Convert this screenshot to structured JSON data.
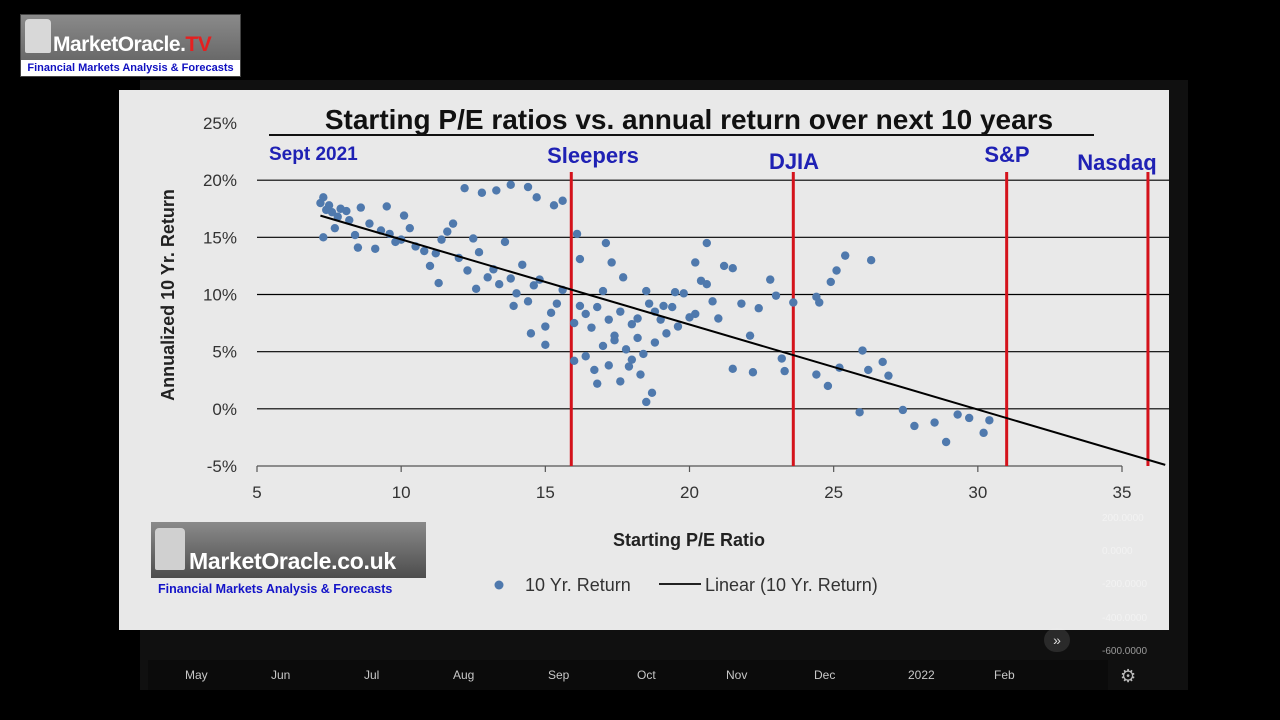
{
  "background": {
    "months": [
      "May",
      "Jun",
      "Jul",
      "Aug",
      "Sep",
      "Oct",
      "Nov",
      "Dec",
      "2022",
      "Feb"
    ],
    "right_scale": [
      "200.0000",
      "0.0000",
      "-200.0000",
      "-400.0000",
      "-600.0000"
    ]
  },
  "logo_top": {
    "brand": "MarketOracle.",
    "brand_suffix": "TV",
    "tagline": "Financial Markets Analysis & Forecasts"
  },
  "logo_bottom": {
    "brand": "MarketOracle.co.uk",
    "tagline": "Financial Markets Analysis & Forecasts"
  },
  "colors": {
    "point": "#4f79ad",
    "marker_line": "#d4121b",
    "marker_text": "#1f21b4",
    "trend": "#000000"
  },
  "chart_data": {
    "type": "scatter",
    "title": "Starting P/E ratios vs. annual return over next 10 years",
    "xlabel": "Starting P/E Ratio",
    "ylabel": "Annualized 10 Yr. Return",
    "xlim": [
      5,
      35
    ],
    "ylim": [
      -5,
      25
    ],
    "xticks": [
      "5",
      "10",
      "15",
      "20",
      "25",
      "30",
      "35"
    ],
    "yticks": [
      "25%",
      "20%",
      "15%",
      "10%",
      "5%",
      "0%",
      "-5%"
    ],
    "y_tick_values": [
      25,
      20,
      15,
      10,
      5,
      0,
      -5
    ],
    "x_tick_values": [
      5,
      10,
      15,
      20,
      25,
      30,
      35
    ],
    "grid": true,
    "legend_position": "bottom",
    "legend": {
      "points": "10 Yr. Return",
      "trend": "Linear (10 Yr. Return)"
    },
    "annotation": "Sept 2021",
    "markers": [
      {
        "label": "Sleepers",
        "x": 15.9
      },
      {
        "label": "DJIA",
        "x": 23.6
      },
      {
        "label": "S&P",
        "x": 31.0
      },
      {
        "label": "Nasdaq",
        "x": 35.9
      }
    ],
    "trendline": {
      "x": [
        7.2,
        36.5
      ],
      "y": [
        16.9,
        -4.9
      ]
    },
    "series": [
      {
        "name": "10 Yr. Return",
        "points": [
          [
            7.2,
            18.0
          ],
          [
            7.3,
            18.5
          ],
          [
            7.4,
            17.4
          ],
          [
            7.5,
            17.8
          ],
          [
            7.6,
            17.2
          ],
          [
            7.8,
            16.8
          ],
          [
            7.9,
            17.5
          ],
          [
            8.1,
            17.3
          ],
          [
            7.3,
            15.0
          ],
          [
            7.7,
            15.8
          ],
          [
            8.2,
            16.5
          ],
          [
            8.4,
            15.2
          ],
          [
            8.5,
            14.1
          ],
          [
            8.6,
            17.6
          ],
          [
            8.9,
            16.2
          ],
          [
            9.1,
            14.0
          ],
          [
            9.3,
            15.6
          ],
          [
            9.5,
            17.7
          ],
          [
            9.6,
            15.3
          ],
          [
            9.8,
            14.6
          ],
          [
            10.1,
            16.9
          ],
          [
            10.3,
            15.8
          ],
          [
            10.5,
            14.2
          ],
          [
            10.8,
            13.8
          ],
          [
            11.0,
            12.5
          ],
          [
            11.2,
            13.6
          ],
          [
            11.4,
            14.8
          ],
          [
            11.6,
            15.5
          ],
          [
            11.8,
            16.2
          ],
          [
            12.0,
            13.2
          ],
          [
            12.3,
            12.1
          ],
          [
            12.5,
            14.9
          ],
          [
            12.7,
            13.7
          ],
          [
            13.0,
            11.5
          ],
          [
            13.2,
            12.2
          ],
          [
            13.4,
            10.9
          ],
          [
            13.6,
            14.6
          ],
          [
            13.8,
            11.4
          ],
          [
            14.0,
            10.1
          ],
          [
            14.2,
            12.6
          ],
          [
            14.4,
            9.4
          ],
          [
            14.6,
            10.8
          ],
          [
            14.8,
            11.3
          ],
          [
            15.0,
            7.2
          ],
          [
            15.2,
            8.4
          ],
          [
            15.4,
            9.2
          ],
          [
            15.6,
            10.4
          ],
          [
            12.2,
            19.3
          ],
          [
            12.8,
            18.9
          ],
          [
            13.3,
            19.1
          ],
          [
            13.8,
            19.6
          ],
          [
            14.4,
            19.4
          ],
          [
            14.7,
            18.5
          ],
          [
            15.3,
            17.8
          ],
          [
            15.6,
            18.2
          ],
          [
            10.0,
            14.8
          ],
          [
            11.3,
            11.0
          ],
          [
            12.6,
            10.5
          ],
          [
            13.9,
            9.0
          ],
          [
            14.5,
            6.6
          ],
          [
            15.0,
            5.6
          ],
          [
            16.0,
            7.5
          ],
          [
            16.2,
            9.0
          ],
          [
            16.4,
            8.3
          ],
          [
            16.6,
            7.1
          ],
          [
            16.8,
            8.9
          ],
          [
            17.0,
            10.3
          ],
          [
            17.2,
            7.8
          ],
          [
            17.4,
            6.4
          ],
          [
            17.6,
            8.5
          ],
          [
            17.8,
            5.2
          ],
          [
            18.0,
            7.4
          ],
          [
            18.2,
            6.2
          ],
          [
            18.4,
            4.8
          ],
          [
            18.6,
            9.2
          ],
          [
            18.8,
            5.8
          ],
          [
            19.0,
            7.8
          ],
          [
            19.2,
            6.6
          ],
          [
            19.4,
            8.9
          ],
          [
            19.6,
            7.2
          ],
          [
            19.8,
            10.1
          ],
          [
            20.0,
            8.0
          ],
          [
            20.2,
            8.3
          ],
          [
            20.4,
            11.2
          ],
          [
            20.6,
            10.9
          ],
          [
            20.8,
            9.4
          ],
          [
            21.0,
            7.9
          ],
          [
            21.2,
            12.5
          ],
          [
            21.5,
            12.3
          ],
          [
            21.8,
            9.2
          ],
          [
            22.1,
            6.4
          ],
          [
            22.4,
            8.8
          ],
          [
            22.8,
            11.3
          ],
          [
            23.0,
            9.9
          ],
          [
            23.3,
            3.3
          ],
          [
            23.6,
            9.3
          ],
          [
            16.1,
            15.3
          ],
          [
            16.2,
            13.1
          ],
          [
            17.1,
            14.5
          ],
          [
            17.3,
            12.8
          ],
          [
            17.7,
            11.5
          ],
          [
            18.5,
            10.3
          ],
          [
            19.1,
            9.0
          ],
          [
            19.5,
            10.2
          ],
          [
            20.2,
            12.8
          ],
          [
            20.6,
            14.5
          ],
          [
            18.2,
            7.9
          ],
          [
            18.8,
            8.5
          ],
          [
            17.9,
            3.7
          ],
          [
            18.3,
            3.0
          ],
          [
            18.7,
            1.4
          ],
          [
            17.6,
            2.4
          ],
          [
            16.4,
            4.6
          ],
          [
            16.7,
            3.4
          ],
          [
            17.0,
            5.5
          ],
          [
            17.4,
            6.0
          ],
          [
            18.0,
            4.3
          ],
          [
            18.5,
            0.6
          ],
          [
            16.0,
            4.2
          ],
          [
            16.8,
            2.2
          ],
          [
            17.2,
            3.8
          ],
          [
            21.5,
            3.5
          ],
          [
            22.2,
            3.2
          ],
          [
            23.2,
            4.4
          ],
          [
            24.4,
            9.8
          ],
          [
            24.5,
            9.3
          ],
          [
            24.9,
            11.1
          ],
          [
            25.1,
            12.1
          ],
          [
            25.4,
            13.4
          ],
          [
            26.3,
            13.0
          ],
          [
            24.4,
            3.0
          ],
          [
            25.2,
            3.6
          ],
          [
            26.0,
            5.1
          ],
          [
            26.2,
            3.4
          ],
          [
            26.7,
            4.1
          ],
          [
            25.9,
            -0.3
          ],
          [
            26.9,
            2.9
          ],
          [
            27.4,
            -0.1
          ],
          [
            27.8,
            -1.5
          ],
          [
            28.5,
            -1.2
          ],
          [
            28.9,
            -2.9
          ],
          [
            29.3,
            -0.5
          ],
          [
            29.7,
            -0.8
          ],
          [
            30.2,
            -2.1
          ],
          [
            30.4,
            -1.0
          ],
          [
            24.8,
            2.0
          ]
        ]
      }
    ]
  }
}
